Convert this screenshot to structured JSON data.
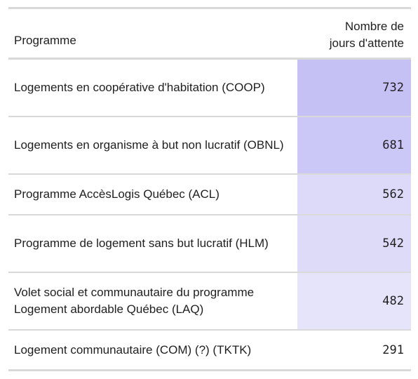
{
  "table": {
    "header": {
      "program": "Programme",
      "days_line1": "Nombre de",
      "days_line2": "jours d'attente"
    },
    "rows": [
      {
        "program": "Logements en coopérative d'habitation (COOP)",
        "days": "732",
        "color": "#c6c1f5"
      },
      {
        "program": "Logements en organisme à but non lucratif (OBNL)",
        "days": "681",
        "color": "#cbc7f6"
      },
      {
        "program": "Programme AccèsLogis Québec (ACL)",
        "days": "562",
        "color": "#dcd9f9"
      },
      {
        "program": "Programme de logement sans but lucratif (HLM)",
        "days": "542",
        "color": "#dedbf9"
      },
      {
        "program": "Volet social et communautaire du programme Logement abordable Québec (LAQ)",
        "days": "482",
        "color": "#e6e4fb"
      },
      {
        "program": "Logement communautaire (COM) (?) (TKTK)",
        "days": "291",
        "color": "#ffffff"
      }
    ]
  }
}
